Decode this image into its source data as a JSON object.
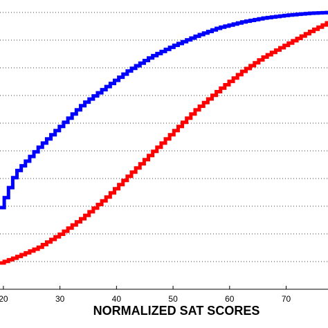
{
  "chart_data": {
    "type": "line",
    "title": "",
    "xlabel": "NORMALIZED SAT SCORES",
    "ylabel": "",
    "xlim": [
      19.4,
      77.4
    ],
    "ylim": [
      0,
      1.045
    ],
    "x_ticks": [
      20,
      30,
      40,
      50,
      60,
      70
    ],
    "x_tick_labels": [
      "20",
      "30",
      "40",
      "50",
      "60",
      "70"
    ],
    "y_gridlines": [
      0.1,
      0.2,
      0.3,
      0.4,
      0.5,
      0.6,
      0.7,
      0.8,
      0.9,
      1.0
    ],
    "grid": "dotted horizontal",
    "legend": "none",
    "step_plot": true,
    "series": [
      {
        "color": "#0000ff",
        "x": [
          19.4,
          22,
          26,
          30,
          34,
          38,
          42,
          46,
          50,
          54,
          58,
          62,
          66,
          70,
          74,
          77.4
        ],
        "values": [
          0.295,
          0.42,
          0.51,
          0.59,
          0.67,
          0.73,
          0.79,
          0.84,
          0.88,
          0.915,
          0.945,
          0.965,
          0.98,
          0.99,
          0.997,
          1.0
        ]
      },
      {
        "color": "#ff0000",
        "x": [
          19.4,
          22,
          26,
          30,
          34,
          38,
          42,
          46,
          50,
          54,
          58,
          62,
          66,
          70,
          74,
          77.4
        ],
        "values": [
          0.095,
          0.115,
          0.15,
          0.2,
          0.26,
          0.33,
          0.41,
          0.49,
          0.57,
          0.65,
          0.72,
          0.785,
          0.84,
          0.885,
          0.93,
          0.965
        ]
      }
    ]
  }
}
